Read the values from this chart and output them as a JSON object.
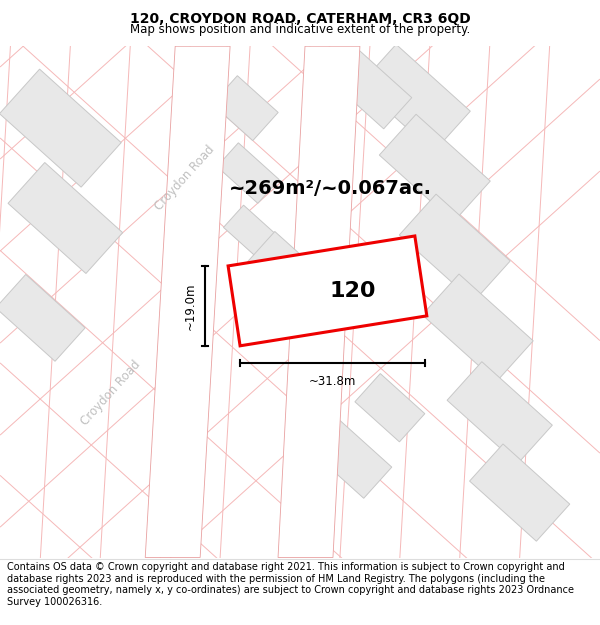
{
  "title": "120, CROYDON ROAD, CATERHAM, CR3 6QD",
  "subtitle": "Map shows position and indicative extent of the property.",
  "area_text": "~269m²/~0.067ac.",
  "property_number": "120",
  "dim_width": "~31.8m",
  "dim_height": "~19.0m",
  "footer_text": "Contains OS data © Crown copyright and database right 2021. This information is subject to Crown copyright and database rights 2023 and is reproduced with the permission of HM Land Registry. The polygons (including the associated geometry, namely x, y co-ordinates) are subject to Crown copyright and database rights 2023 Ordnance Survey 100026316.",
  "map_bg_color": "#f7f7f7",
  "road_fill_color": "#ffffff",
  "road_edge_color": "#e8a0a0",
  "building_fill_color": "#e8e8e8",
  "building_edge_color": "#c8c8c8",
  "parcel_line_color": "#f5b8b8",
  "property_fill": "#ffffff",
  "property_outline": "#ee0000",
  "road_label_color": "#c0c0c0",
  "title_fontsize": 10,
  "subtitle_fontsize": 8.5,
  "area_fontsize": 14,
  "number_fontsize": 16,
  "footer_fontsize": 7,
  "dim_fontsize": 8.5,
  "road_label_fontsize": 8.5
}
